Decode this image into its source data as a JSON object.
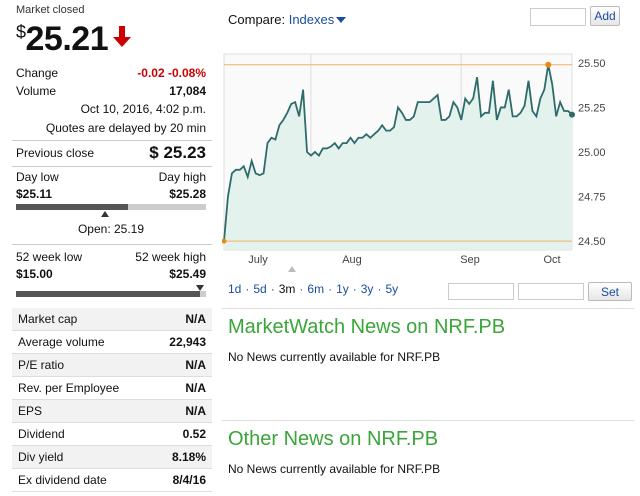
{
  "quote": {
    "market_status": "Market closed",
    "currency": "$",
    "price": "25.21",
    "change_label": "Change",
    "change_value": "-0.02 -0.08%",
    "volume_label": "Volume",
    "volume_value": "17,084",
    "timestamp": "Oct 10, 2016, 4:02 p.m.",
    "delay_note": "Quotes are delayed by 20 min",
    "prev_close_label": "Previous close",
    "prev_close_value": "$ 25.23",
    "day_low_label": "Day low",
    "day_high_label": "Day high",
    "day_low_value": "$25.11",
    "day_high_value": "$25.28",
    "day_range_position": 0.59,
    "open_label": "Open: 25.19",
    "wk52_low_label": "52 week low",
    "wk52_high_label": "52 week high",
    "wk52_low_value": "$15.00",
    "wk52_high_value": "$25.49",
    "wk52_range_position": 0.97
  },
  "stats": [
    {
      "label": "Market cap",
      "value": "N/A"
    },
    {
      "label": "Average volume",
      "value": "22,943"
    },
    {
      "label": "P/E ratio",
      "value": "N/A"
    },
    {
      "label": "Rev. per Employee",
      "value": "N/A"
    },
    {
      "label": "EPS",
      "value": "N/A"
    },
    {
      "label": "Dividend",
      "value": "0.52"
    },
    {
      "label": "Div yield",
      "value": "8.18%"
    },
    {
      "label": "Ex dividend date",
      "value": "8/4/16"
    }
  ],
  "compare": {
    "label": "Compare:",
    "dropdown": "Indexes",
    "add_button": "Add"
  },
  "ranges": [
    "1d",
    "5d",
    "3m",
    "6m",
    "1y",
    "3y",
    "5y"
  ],
  "selected_range": "3m",
  "set_button": "Set",
  "news": {
    "mw_title": "MarketWatch News on NRF.PB",
    "mw_empty": "No News currently available for NRF.PB",
    "other_title": "Other News on NRF.PB",
    "other_empty": "No News currently available for NRF.PB"
  },
  "colors": {
    "line": "#2e6b6b",
    "fill": "#e4f2ed",
    "ref": "#f0b060",
    "marker": "#e88a1a",
    "down": "#cc0000",
    "news": "#3aa63a"
  },
  "chart_data": {
    "type": "area",
    "x_labels": [
      "July",
      "Aug",
      "Sep",
      "Oct"
    ],
    "y_ticks": [
      "25.50",
      "25.25",
      "25.00",
      "24.75",
      "24.50"
    ],
    "ylim": [
      24.45,
      25.55
    ],
    "reference_lines": [
      25.49,
      24.5
    ],
    "values": [
      24.5,
      24.75,
      24.88,
      24.9,
      24.9,
      24.92,
      24.86,
      24.95,
      24.88,
      24.87,
      24.88,
      25.05,
      25.08,
      25.07,
      25.15,
      25.18,
      25.22,
      25.27,
      25.28,
      25.2,
      25.35,
      25.0,
      24.98,
      25.0,
      24.98,
      25.02,
      25.02,
      25.03,
      25.05,
      25.02,
      25.05,
      25.05,
      25.08,
      25.05,
      25.08,
      25.08,
      25.1,
      25.08,
      25.1,
      25.12,
      25.15,
      25.12,
      25.12,
      25.14,
      25.25,
      25.22,
      25.18,
      25.18,
      25.2,
      25.28,
      25.28,
      25.28,
      25.28,
      25.3,
      25.32,
      25.18,
      25.18,
      25.2,
      25.28,
      25.25,
      25.18,
      25.3,
      25.27,
      25.3,
      25.42,
      25.2,
      25.22,
      25.22,
      25.4,
      25.18,
      25.25,
      25.25,
      25.35,
      25.2,
      25.2,
      25.22,
      25.26,
      25.4,
      25.23,
      25.2,
      25.3,
      25.35,
      25.49,
      25.38,
      25.2,
      25.28,
      25.23,
      25.23,
      25.21
    ]
  }
}
